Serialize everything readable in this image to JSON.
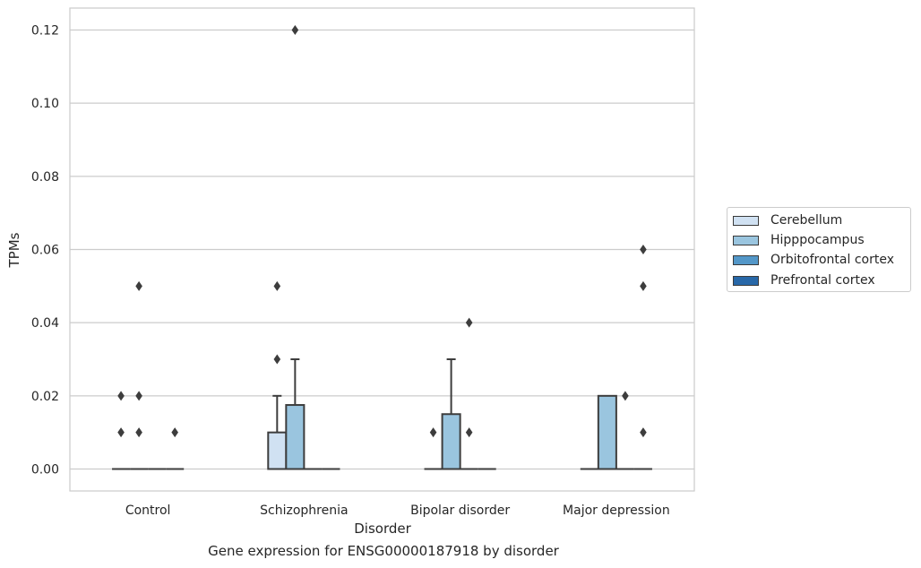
{
  "caption": "Gene expression for ENSG00000187918 by disorder",
  "chart_data": {
    "type": "box",
    "xlabel": "Disorder",
    "ylabel": "TPMs",
    "ylim": [
      -0.006,
      0.126
    ],
    "yticks": [
      "0.00",
      "0.02",
      "0.04",
      "0.06",
      "0.08",
      "0.10",
      "0.12"
    ],
    "ytick_values": [
      0,
      0.02,
      0.04,
      0.06,
      0.08,
      0.1,
      0.12
    ],
    "grid": "horizontal",
    "legend_placement": "right, outside plot",
    "categories": [
      "Control",
      "Schizophrenia",
      "Bipolar disorder",
      "Major depression"
    ],
    "series": [
      {
        "name": "Cerebellum",
        "color": "#d0e1f2",
        "boxes": [
          {
            "q1": 0,
            "median": 0,
            "q3": 0,
            "whisker_low": 0,
            "whisker_high": 0,
            "outliers": [
              0.01,
              0.02
            ]
          },
          {
            "q1": 0,
            "median": 0,
            "q3": 0.01,
            "whisker_low": 0,
            "whisker_high": 0.02,
            "outliers": [
              0.03,
              0.05
            ]
          },
          {
            "q1": 0,
            "median": 0,
            "q3": 0,
            "whisker_low": 0,
            "whisker_high": 0,
            "outliers": [
              0.01
            ]
          },
          {
            "q1": 0,
            "median": 0,
            "q3": 0,
            "whisker_low": 0,
            "whisker_high": 0,
            "outliers": []
          }
        ]
      },
      {
        "name": "Hipppocampus",
        "color": "#9ac5df",
        "boxes": [
          {
            "q1": 0,
            "median": 0,
            "q3": 0,
            "whisker_low": 0,
            "whisker_high": 0,
            "outliers": [
              0.01,
              0.02,
              0.05
            ]
          },
          {
            "q1": 0,
            "median": 0,
            "q3": 0.0175,
            "whisker_low": 0,
            "whisker_high": 0.03,
            "outliers": [
              0.12
            ]
          },
          {
            "q1": 0,
            "median": 0,
            "q3": 0.015,
            "whisker_low": 0,
            "whisker_high": 0.03,
            "outliers": []
          },
          {
            "q1": 0,
            "median": 0,
            "q3": 0.02,
            "whisker_low": 0,
            "whisker_high": 0.02,
            "outliers": []
          }
        ]
      },
      {
        "name": "Orbitofrontal cortex",
        "color": "#5397c8",
        "boxes": [
          {
            "q1": 0,
            "median": 0,
            "q3": 0,
            "whisker_low": 0,
            "whisker_high": 0,
            "outliers": []
          },
          {
            "q1": 0,
            "median": 0,
            "q3": 0,
            "whisker_low": 0,
            "whisker_high": 0,
            "outliers": []
          },
          {
            "q1": 0,
            "median": 0,
            "q3": 0,
            "whisker_low": 0,
            "whisker_high": 0,
            "outliers": [
              0.01,
              0.04
            ]
          },
          {
            "q1": 0,
            "median": 0,
            "q3": 0,
            "whisker_low": 0,
            "whisker_high": 0,
            "outliers": [
              0.02
            ]
          }
        ]
      },
      {
        "name": "Prefrontal cortex",
        "color": "#2868a8",
        "boxes": [
          {
            "q1": 0,
            "median": 0,
            "q3": 0,
            "whisker_low": 0,
            "whisker_high": 0,
            "outliers": [
              0.01
            ]
          },
          {
            "q1": 0,
            "median": 0,
            "q3": 0,
            "whisker_low": 0,
            "whisker_high": 0,
            "outliers": []
          },
          {
            "q1": 0,
            "median": 0,
            "q3": 0,
            "whisker_low": 0,
            "whisker_high": 0,
            "outliers": []
          },
          {
            "q1": 0,
            "median": 0,
            "q3": 0,
            "whisker_low": 0,
            "whisker_high": 0,
            "outliers": [
              0.01,
              0.05,
              0.06
            ]
          }
        ]
      }
    ]
  }
}
